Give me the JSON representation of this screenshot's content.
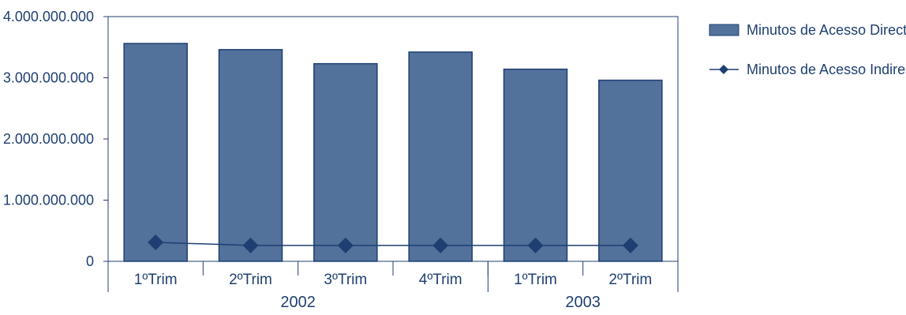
{
  "chart_data": {
    "type": "bar",
    "categories": [
      "1ºTrim",
      "2ºTrim",
      "3ºTrim",
      "4ºTrim",
      "1ºTrim",
      "2ºTrim"
    ],
    "groups": [
      {
        "label": "2002",
        "start": 0,
        "end": 3
      },
      {
        "label": "2003",
        "start": 4,
        "end": 5
      }
    ],
    "series": [
      {
        "name": "Minutos de Acesso Directo",
        "type": "bar",
        "values": [
          3560000000,
          3460000000,
          3230000000,
          3420000000,
          3140000000,
          2960000000
        ],
        "color": "#52719b"
      },
      {
        "name": "Minutos de Acesso Indirecto",
        "type": "line",
        "values": [
          310000000,
          260000000,
          260000000,
          260000000,
          260000000,
          260000000
        ],
        "color": "#1f3f72"
      }
    ],
    "ylim": [
      0,
      4000000000
    ],
    "yticks": [
      0,
      1000000000,
      2000000000,
      3000000000,
      4000000000
    ],
    "ytick_labels": [
      "0",
      "1.000.000.000",
      "2.000.000.000",
      "3.000.000.000",
      "4.000.000.000"
    ],
    "grid": false,
    "legend_position": "right"
  }
}
